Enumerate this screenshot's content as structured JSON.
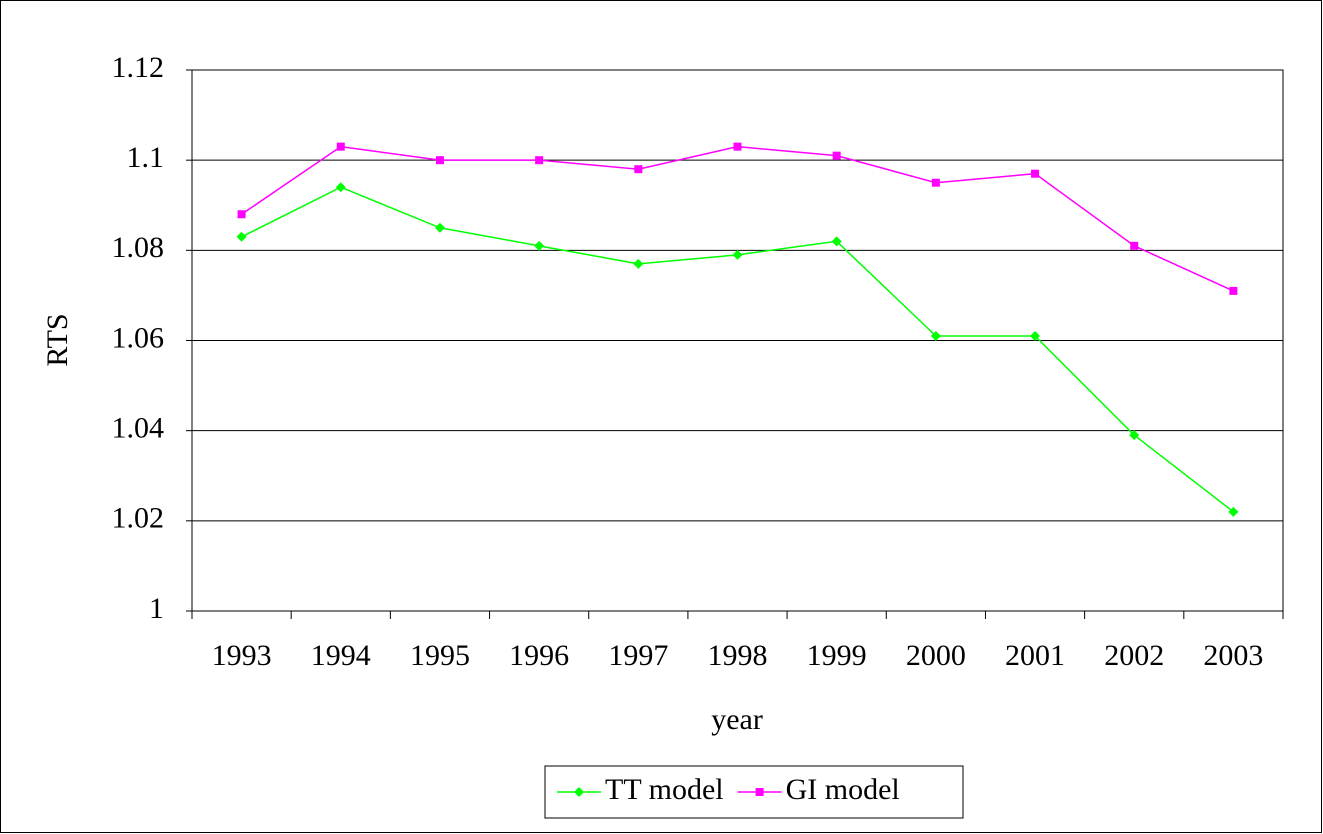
{
  "chart_data": {
    "type": "line",
    "x_label": "year",
    "y_label": "RTS",
    "categories": [
      "1993",
      "1994",
      "1995",
      "1996",
      "1997",
      "1998",
      "1999",
      "2000",
      "2001",
      "2002",
      "2003"
    ],
    "series": [
      {
        "name": "TT model",
        "color": "#00ff00",
        "marker": "diamond",
        "values": [
          1.083,
          1.094,
          1.085,
          1.081,
          1.077,
          1.079,
          1.082,
          1.061,
          1.061,
          1.039,
          1.022
        ]
      },
      {
        "name": "GI model",
        "color": "#ff00ff",
        "marker": "square",
        "values": [
          1.088,
          1.103,
          1.1,
          1.1,
          1.098,
          1.103,
          1.101,
          1.095,
          1.097,
          1.081,
          1.071
        ]
      }
    ],
    "ylim": [
      1,
      1.12
    ],
    "yticks": [
      1,
      1.02,
      1.04,
      1.06,
      1.08,
      1.1,
      1.12
    ],
    "grid": true,
    "legend": "bottom"
  }
}
